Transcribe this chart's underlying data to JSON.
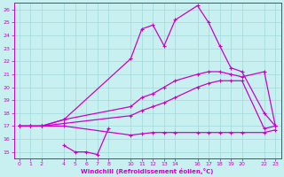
{
  "xlabel": "Windchill (Refroidissement éolien,°C)",
  "xlim": [
    -0.5,
    23.5
  ],
  "ylim": [
    14.5,
    26.5
  ],
  "xticks": [
    0,
    1,
    2,
    4,
    5,
    6,
    7,
    8,
    10,
    11,
    12,
    13,
    14,
    16,
    17,
    18,
    19,
    20,
    22,
    23
  ],
  "yticks": [
    15,
    16,
    17,
    18,
    19,
    20,
    21,
    22,
    23,
    24,
    25,
    26
  ],
  "background_color": "#c8f0f0",
  "grid_color": "#a0d8d8",
  "line_color": "#cc00cc",
  "line1_x": [
    0,
    1,
    2,
    4,
    10,
    11,
    12,
    13,
    14,
    16,
    17,
    18,
    19,
    20,
    22,
    23
  ],
  "line1_y": [
    17.0,
    17.0,
    17.0,
    17.5,
    22.2,
    24.5,
    24.8,
    23.2,
    25.2,
    26.3,
    25.0,
    23.2,
    21.5,
    21.2,
    18.0,
    17.0
  ],
  "line2_x": [
    0,
    1,
    2,
    4,
    10,
    11,
    12,
    13,
    14,
    16,
    17,
    18,
    19,
    20,
    22,
    23
  ],
  "line2_y": [
    17.0,
    17.0,
    17.0,
    17.5,
    18.5,
    19.2,
    19.5,
    20.0,
    20.5,
    21.0,
    21.2,
    21.2,
    21.0,
    20.8,
    21.2,
    17.0
  ],
  "line3_x": [
    0,
    1,
    2,
    4,
    10,
    11,
    12,
    13,
    14,
    16,
    17,
    18,
    19,
    20,
    22,
    23
  ],
  "line3_y": [
    17.0,
    17.0,
    17.0,
    17.2,
    17.8,
    18.2,
    18.5,
    18.8,
    19.2,
    20.0,
    20.3,
    20.5,
    20.5,
    20.5,
    16.8,
    17.0
  ],
  "line4_x": [
    4,
    5,
    6,
    7,
    8
  ],
  "line4_y": [
    15.5,
    15.0,
    15.0,
    14.8,
    16.8
  ],
  "line5_x": [
    0,
    1,
    2,
    4,
    10,
    11,
    12,
    13,
    14,
    16,
    17,
    18,
    19,
    20,
    22,
    23
  ],
  "line5_y": [
    17.0,
    17.0,
    17.0,
    17.0,
    16.3,
    16.4,
    16.5,
    16.5,
    16.5,
    16.5,
    16.5,
    16.5,
    16.5,
    16.5,
    16.5,
    16.7
  ]
}
